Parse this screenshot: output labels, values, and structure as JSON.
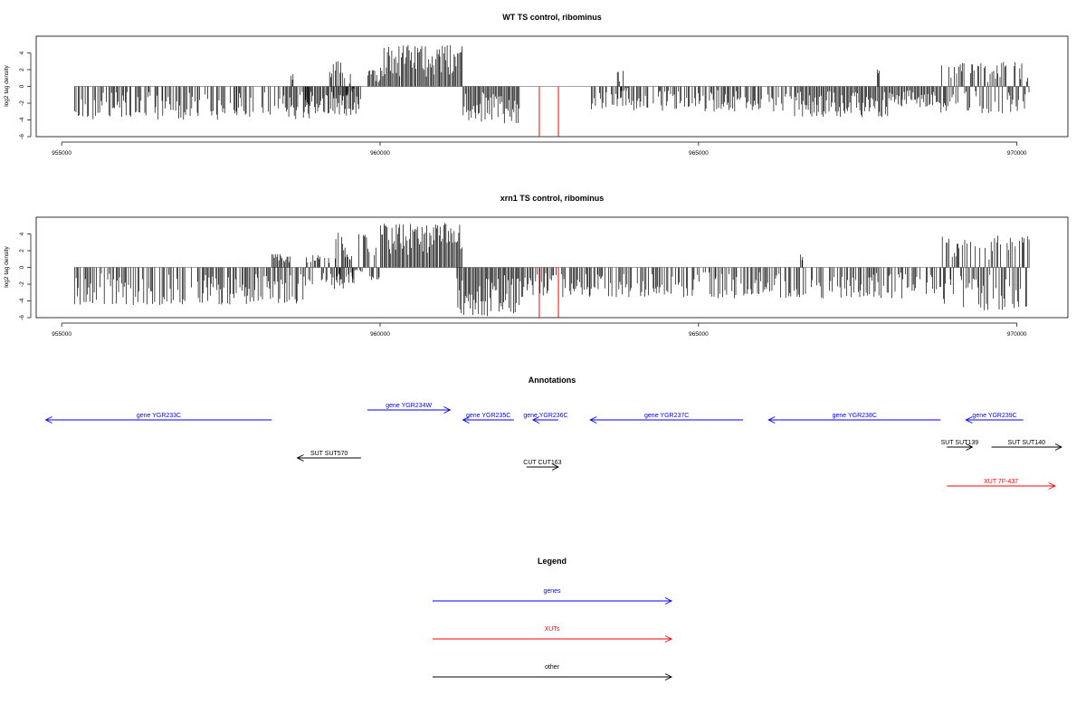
{
  "colors": {
    "gene": "#0000ff",
    "xut": "#ff0000",
    "other": "#000000",
    "bar": "#000000",
    "highlight": "#ff0000",
    "baseline": "#888888"
  },
  "chart_data": [
    {
      "type": "bar",
      "title": "WT TS control, ribominus",
      "ylabel": "log2 tag density",
      "xlim": [
        954600,
        970800
      ],
      "ylim": [
        -6,
        6
      ],
      "xticks": [
        955000,
        960000,
        965000,
        970000
      ],
      "yticks": [
        -6,
        -4,
        -2,
        0,
        2,
        4
      ],
      "highlight_x": [
        962500,
        962800
      ],
      "series": [
        {
          "name": "",
          "segments": [
            {
              "from": 955200,
              "to": 958900,
              "min": -4.0,
              "max": 0.3
            },
            {
              "from": 958600,
              "to": 958650,
              "min": 0,
              "max": 1.5
            },
            {
              "from": 958800,
              "to": 959700,
              "min": -3.5,
              "max": 0.5
            },
            {
              "from": 959200,
              "to": 959400,
              "min": -1.5,
              "max": 3.2
            },
            {
              "from": 959400,
              "to": 959600,
              "min": -1.2,
              "max": 2.0
            },
            {
              "from": 959800,
              "to": 960000,
              "min": -0.5,
              "max": 2.5
            },
            {
              "from": 960000,
              "to": 961300,
              "min": 0,
              "max": 5.0
            },
            {
              "from": 961300,
              "to": 962200,
              "min": -4.5,
              "max": 0
            },
            {
              "from": 963300,
              "to": 966500,
              "min": -3.0,
              "max": 0.5
            },
            {
              "from": 963700,
              "to": 963900,
              "min": -1.0,
              "max": 2.0
            },
            {
              "from": 966500,
              "to": 968000,
              "min": -3.7,
              "max": 0.2
            },
            {
              "from": 967800,
              "to": 967850,
              "min": 0,
              "max": 2.2
            },
            {
              "from": 968000,
              "to": 968800,
              "min": -2.5,
              "max": 0.1
            },
            {
              "from": 968800,
              "to": 970200,
              "min": -3.2,
              "max": 3.0
            }
          ]
        }
      ]
    },
    {
      "type": "bar",
      "title": "xrn1 TS control, ribominus",
      "ylabel": "log2 tag density",
      "xlim": [
        954600,
        970800
      ],
      "ylim": [
        -6,
        6
      ],
      "xticks": [
        955000,
        960000,
        965000,
        970000
      ],
      "yticks": [
        -6,
        -4,
        -2,
        0,
        2,
        4
      ],
      "highlight_x": [
        962500,
        962800
      ],
      "series": [
        {
          "name": "",
          "segments": [
            {
              "from": 955200,
              "to": 958800,
              "min": -4.5,
              "max": 0.6
            },
            {
              "from": 958300,
              "to": 958600,
              "min": -0.5,
              "max": 1.6
            },
            {
              "from": 958800,
              "to": 959600,
              "min": -2.8,
              "max": 1.5
            },
            {
              "from": 959300,
              "to": 960000,
              "min": -1.5,
              "max": 4.2
            },
            {
              "from": 960000,
              "to": 961300,
              "min": 0,
              "max": 5.3
            },
            {
              "from": 961200,
              "to": 962200,
              "min": -5.8,
              "max": 0
            },
            {
              "from": 962200,
              "to": 965000,
              "min": -3.6,
              "max": 0.4
            },
            {
              "from": 965000,
              "to": 968800,
              "min": -3.7,
              "max": 0.4
            },
            {
              "from": 966600,
              "to": 966650,
              "min": 0,
              "max": 1.8
            },
            {
              "from": 968800,
              "to": 970200,
              "min": -5.2,
              "max": 3.8
            }
          ]
        }
      ]
    }
  ],
  "annotations": {
    "title": "Annotations",
    "genes": [
      {
        "label": "gene YGR233C",
        "x1": 954750,
        "x2": 958300,
        "strand": "-",
        "row": 0
      },
      {
        "label": "gene YGR234W",
        "x1": 959800,
        "x2": 961100,
        "strand": "+",
        "row": -1
      },
      {
        "label": "gene YGR235C",
        "x1": 961300,
        "x2": 962100,
        "strand": "-",
        "row": 0
      },
      {
        "label": "gene YGR236C",
        "x1": 962400,
        "x2": 962800,
        "strand": "-",
        "row": 0
      },
      {
        "label": "gene YGR237C",
        "x1": 963300,
        "x2": 965700,
        "strand": "-",
        "row": 0
      },
      {
        "label": "gene YGR238C",
        "x1": 966100,
        "x2": 968800,
        "strand": "-",
        "row": 0
      },
      {
        "label": "gene YGR239C",
        "x1": 969200,
        "x2": 970100,
        "strand": "-",
        "row": 0
      }
    ],
    "other": [
      {
        "label": "SUT SUT570",
        "x1": 958700,
        "x2": 959700,
        "strand": "-",
        "row": 0
      },
      {
        "label": "CUT CUT163",
        "x1": 962300,
        "x2": 962800,
        "strand": "+",
        "row": 1
      },
      {
        "label": "SUT SUT139",
        "x1": 968900,
        "x2": 969300,
        "strand": "+",
        "row": 0
      },
      {
        "label": "SUT SUT140",
        "x1": 969600,
        "x2": 970700,
        "strand": "+",
        "row": 0
      }
    ],
    "xuts": [
      {
        "label": "XUT 7F-437",
        "x1": 968900,
        "x2": 970600,
        "strand": "+",
        "row": 0
      }
    ]
  },
  "legend": {
    "title": "Legend",
    "items": [
      {
        "label": "genes",
        "kind": "gene"
      },
      {
        "label": "XUTs",
        "kind": "xut"
      },
      {
        "label": "other",
        "kind": "other"
      }
    ]
  }
}
